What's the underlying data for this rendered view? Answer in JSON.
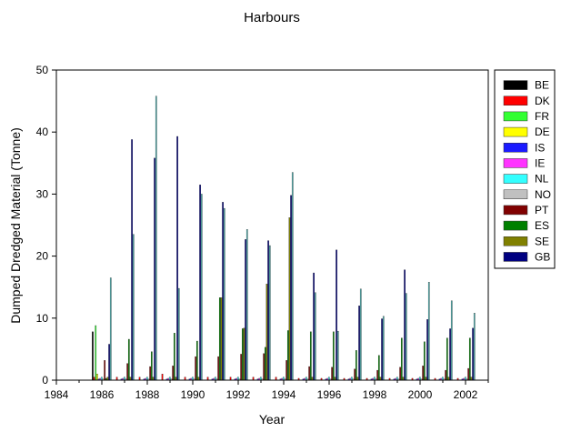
{
  "chart_data": {
    "type": "bar",
    "title": "Harbours",
    "xlabel": "Year",
    "ylabel": "Dumped Dredged Material (Tonne)",
    "xlim": [
      1984,
      2003
    ],
    "ylim": [
      0,
      50
    ],
    "xticks": [
      1984,
      1986,
      1988,
      1990,
      1992,
      1994,
      1996,
      1998,
      2000,
      2002
    ],
    "yticks": [
      0,
      10,
      20,
      30,
      40,
      50
    ],
    "grid": false,
    "legend_position": "right",
    "years": [
      1986,
      1987,
      1988,
      1989,
      1990,
      1991,
      1992,
      1993,
      1994,
      1995,
      1996,
      1997,
      1998,
      1999,
      2000,
      2001,
      2002
    ],
    "series": [
      {
        "name": "BE",
        "color": "#000000",
        "values": [
          7.8,
          0,
          0,
          0,
          0,
          0,
          0,
          0,
          0,
          0,
          0,
          0,
          0,
          0,
          0,
          0,
          0
        ]
      },
      {
        "name": "DK",
        "color": "#ff0000",
        "values": [
          0.5,
          0.5,
          0.5,
          1,
          0.5,
          0.5,
          0.5,
          0.5,
          0.5,
          0.3,
          0.3,
          0.3,
          0.3,
          0.3,
          0.3,
          0.3,
          0.3
        ]
      },
      {
        "name": "FR",
        "color": "#33ff33",
        "values": [
          8.8,
          0,
          0,
          0,
          0,
          0,
          0,
          0,
          0,
          0,
          0,
          0,
          0,
          0,
          0,
          0,
          0
        ]
      },
      {
        "name": "DE",
        "color": "#ffff00",
        "values": [
          1,
          0,
          0,
          0,
          0,
          0,
          0,
          0,
          0,
          0,
          0,
          0,
          0,
          0,
          0,
          0,
          0
        ]
      },
      {
        "name": "IS",
        "color": "#1a1aff",
        "values": [
          0.2,
          0.2,
          0.2,
          0.2,
          0.2,
          0.2,
          0.2,
          0.2,
          0.2,
          0.2,
          0.2,
          0.2,
          0.2,
          0.2,
          0.2,
          0.2,
          0.2
        ]
      },
      {
        "name": "IE",
        "color": "#ff33ff",
        "values": [
          0.3,
          0.3,
          0.3,
          0.3,
          0.3,
          0.3,
          0.3,
          0.3,
          0.3,
          0.3,
          0.3,
          0.3,
          0.3,
          0.3,
          0.3,
          0.3,
          0.3
        ]
      },
      {
        "name": "NL",
        "color": "#33ffff",
        "values": [
          0.5,
          0.5,
          0.5,
          0.5,
          0.5,
          0.5,
          0.5,
          0.5,
          0.5,
          0.5,
          0.5,
          0.5,
          0.5,
          0.5,
          0.5,
          0.5,
          0.5
        ]
      },
      {
        "name": "NO",
        "color": "#c0c0c0",
        "values": [
          0.2,
          0.2,
          0.2,
          0.2,
          0.2,
          0.2,
          0.2,
          0.2,
          0.2,
          0.2,
          0.2,
          0.2,
          0.2,
          0.2,
          0.2,
          0.2,
          0.2
        ]
      },
      {
        "name": "PT",
        "color": "#800000",
        "values": [
          3.2,
          2.7,
          2.2,
          2.3,
          3.8,
          3.8,
          4.2,
          4.3,
          3.2,
          2.2,
          2.1,
          1.8,
          1.6,
          2.1,
          2.3,
          1.6,
          1.9
        ]
      },
      {
        "name": "ES",
        "color": "#008000",
        "values": [
          0.3,
          6.6,
          4.6,
          7.6,
          6.3,
          13.3,
          8.3,
          5.3,
          8,
          7.8,
          7.8,
          4.8,
          4,
          6.8,
          6.2,
          6.8,
          6.8
        ]
      },
      {
        "name": "SE",
        "color": "#808000",
        "values": [
          0.5,
          0.5,
          0.5,
          0.5,
          0.5,
          13.3,
          8.4,
          15.5,
          26.2,
          0.5,
          0.5,
          0.5,
          0.5,
          0.5,
          0.5,
          0.5,
          0.5
        ]
      },
      {
        "name": "GB",
        "color": "#000080",
        "values": [
          5.8,
          38.8,
          35.8,
          39.3,
          31.5,
          28.7,
          22.7,
          22.5,
          29.8,
          17.3,
          21,
          12,
          9.9,
          17.8,
          9.8,
          8.3,
          8.4
        ]
      },
      {
        "name": "",
        "color": "#4fb3b3",
        "values": [
          16.5,
          23.5,
          45.8,
          14.8,
          30,
          27.7,
          24.3,
          21.7,
          33.5,
          14.1,
          7.9,
          14.7,
          10.3,
          14,
          15.8,
          12.8,
          10.8
        ]
      }
    ]
  }
}
